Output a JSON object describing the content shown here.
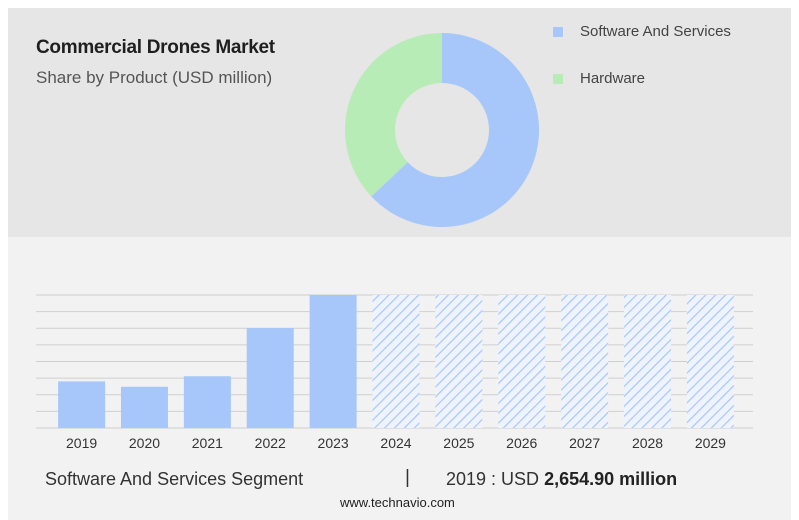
{
  "header": {
    "title": "Commercial Drones Market",
    "subtitle": "Share by Product (USD million)"
  },
  "legend": [
    {
      "label": "Software And Services",
      "color": "#a7c7fb"
    },
    {
      "label": "Hardware",
      "color": "#b8ecb7"
    }
  ],
  "chart_data": [
    {
      "type": "pie",
      "style": "donut",
      "title": "Share by Product (USD million)",
      "categories": [
        "Software And Services",
        "Hardware"
      ],
      "values": [
        63,
        37
      ],
      "colors": [
        "#a7c7fb",
        "#b8ecb7"
      ]
    },
    {
      "type": "bar",
      "categories": [
        "2019",
        "2020",
        "2021",
        "2022",
        "2023",
        "2024",
        "2025",
        "2026",
        "2027",
        "2028",
        "2029"
      ],
      "values": [
        2654.9,
        2350,
        2950,
        5700,
        7580,
        7580,
        7580,
        7580,
        7580,
        7580,
        7580
      ],
      "forecast": [
        false,
        false,
        false,
        false,
        false,
        true,
        true,
        true,
        true,
        true,
        true
      ],
      "ylim": [
        0,
        7580
      ],
      "grid": true,
      "bar_color": "#a7c7fb",
      "forecast_style": "hatched"
    }
  ],
  "footer": {
    "segment": "Software And Services Segment",
    "separator": "|",
    "year_prefix": "2019 : USD",
    "value": "2,654.90 million"
  },
  "source": "www.technavio.com"
}
